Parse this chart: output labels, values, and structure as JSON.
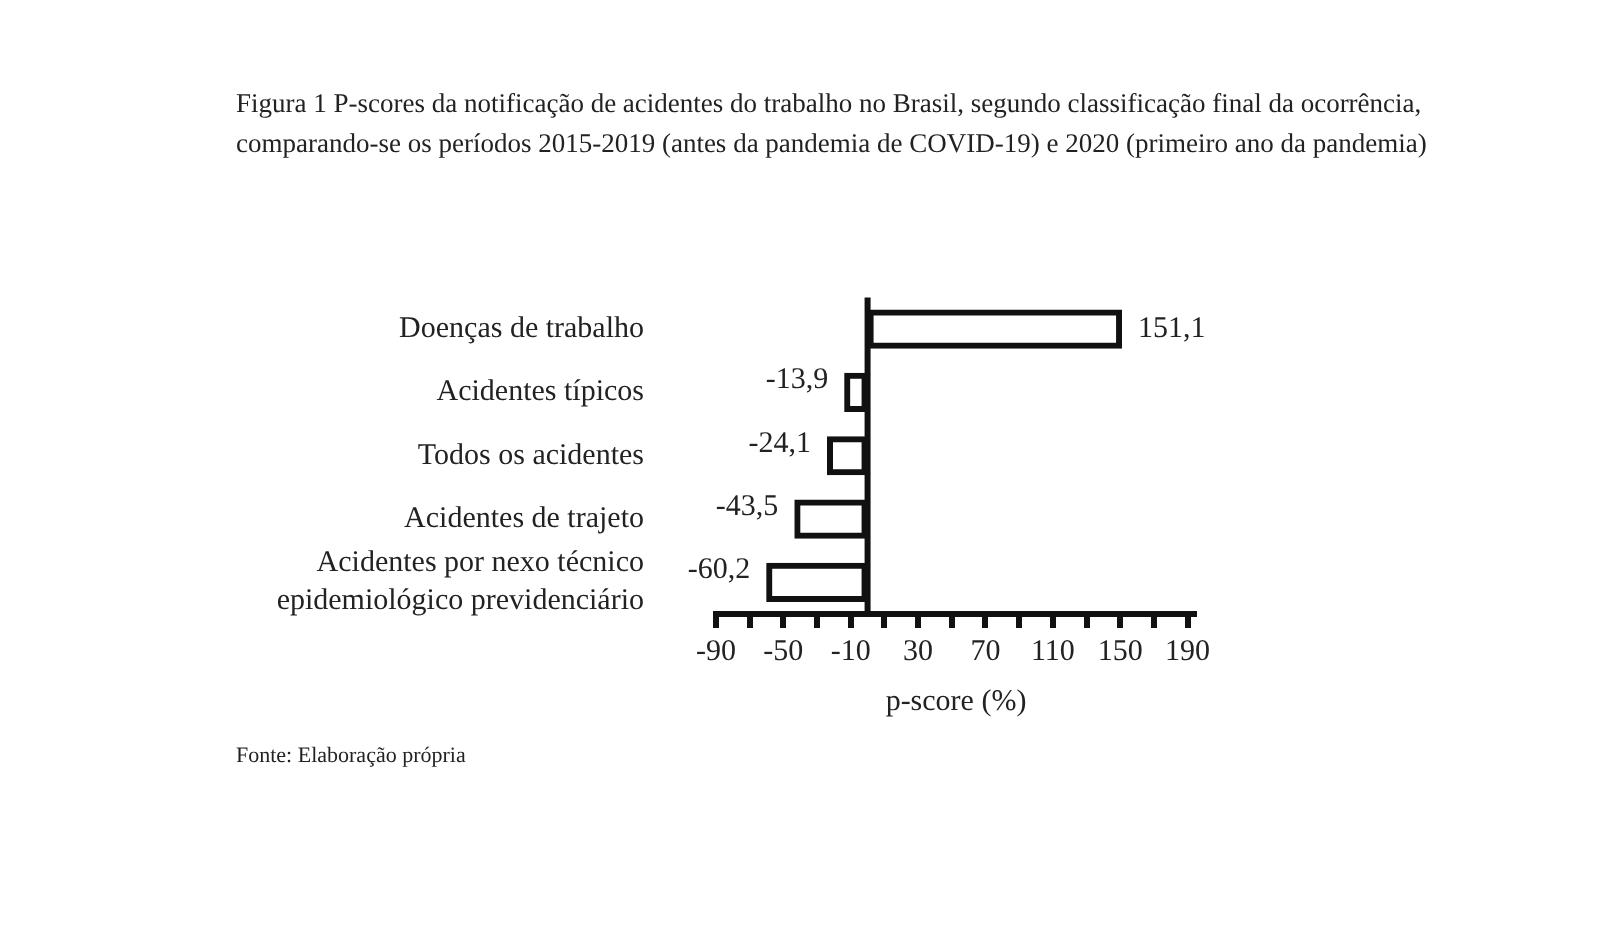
{
  "chart_data": {
    "type": "bar",
    "orientation": "horizontal",
    "title": "Figura 1 P-scores da notificação de acidentes do trabalho no Brasil, segundo classificação final da ocorrência, comparando-se os períodos 2015-2019 (antes da pandemia de COVID-19) e 2020 (primeiro ano da pandemia)",
    "categories": [
      "Doenças de trabalho",
      "Acidentes típicos",
      "Todos os acidentes",
      "Acidentes de trajeto",
      "Acidentes por nexo técnico epidemiológico previdenciário"
    ],
    "values": [
      151.1,
      -13.9,
      -24.1,
      -43.5,
      -60.2
    ],
    "value_labels": [
      "151,1",
      "-13,9",
      "-24,1",
      "-43,5",
      "-60,2"
    ],
    "color": "#111111",
    "xlabel": "p-score (%)",
    "xlim": [
      -90,
      195
    ],
    "xticks": [
      -90,
      {
        "value": -70,
        "label": null
      },
      -50,
      {
        "value": -30,
        "label": null
      },
      -10,
      {
        "value": 10,
        "label": null
      },
      30,
      {
        "value": 50,
        "label": null
      },
      70,
      {
        "value": 90,
        "label": null
      },
      110,
      {
        "value": 130,
        "label": null
      },
      150,
      {
        "value": 170,
        "label": null
      },
      190
    ],
    "grid": false,
    "legend": false,
    "annotations": [
      "Fonte: Elaboração própria"
    ]
  }
}
